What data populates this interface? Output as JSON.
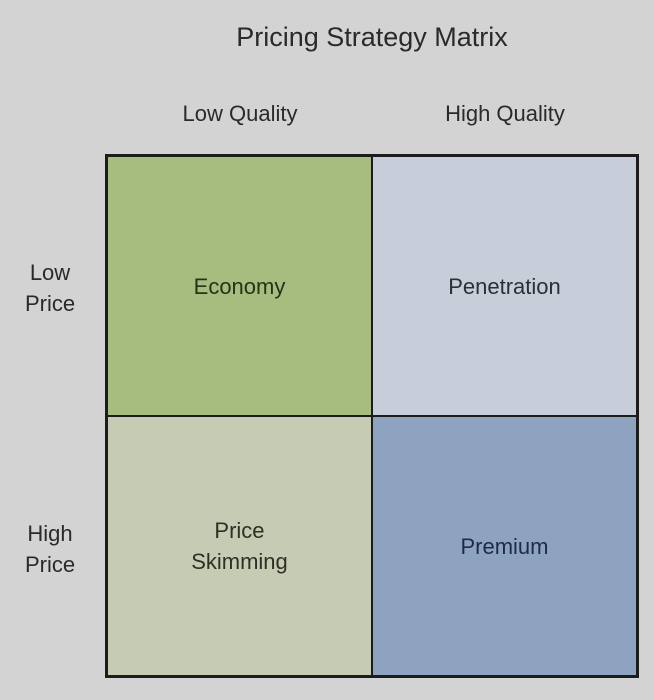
{
  "title": "Pricing Strategy Matrix",
  "columns": [
    "Low Quality",
    "High Quality"
  ],
  "rows": [
    "Low\nPrice",
    "High\nPrice"
  ],
  "cells": [
    [
      "Economy",
      "Penetration"
    ],
    [
      "Price\nSkimming",
      "Premium"
    ]
  ],
  "colors": {
    "economy": "#a7bc7f",
    "penetration": "#c8ced9",
    "price_skimming": "#c6cbb4",
    "premium": "#8ea3c0",
    "background": "#d3d3d3",
    "border": "#1c1c1c"
  }
}
